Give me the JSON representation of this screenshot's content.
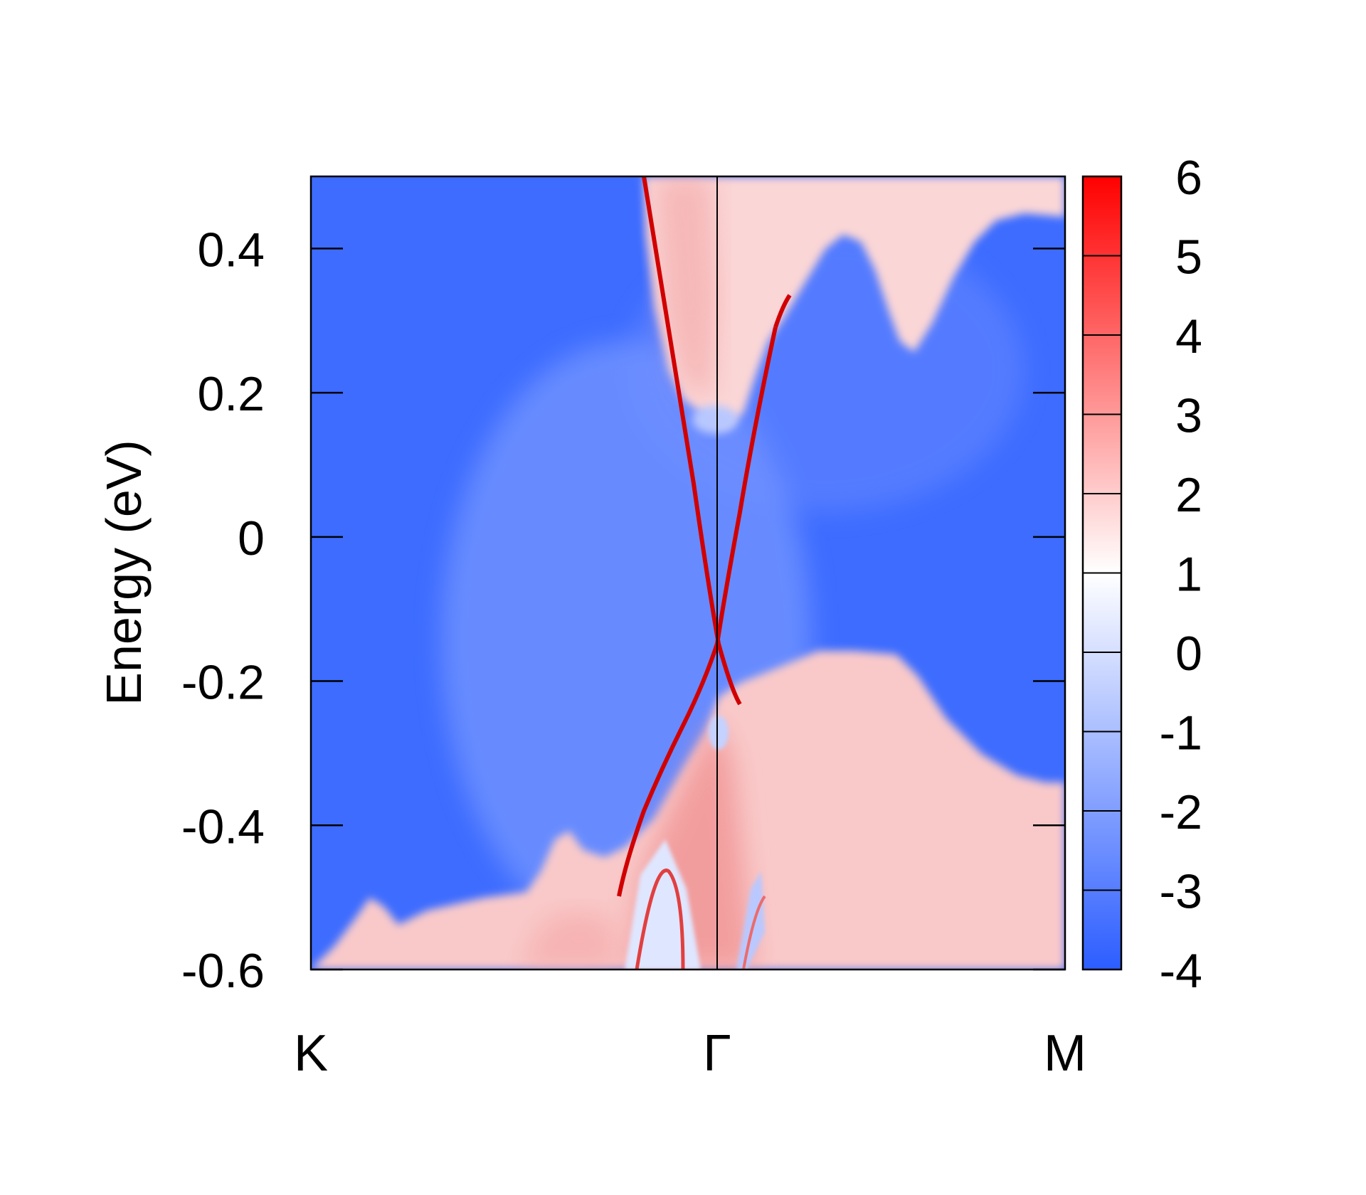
{
  "chart_data": {
    "type": "heatmap",
    "title": "",
    "xlabel": "",
    "ylabel": "Energy (eV)",
    "x_ticks": [
      "K",
      "Γ",
      "M"
    ],
    "y_ticks": [
      "-0.6",
      "-0.4",
      "-0.2",
      "0",
      "0.2",
      "0.4"
    ],
    "y_tick_values": [
      -0.6,
      -0.4,
      -0.2,
      0,
      0.2,
      0.4
    ],
    "ylim": [
      -0.6,
      0.5
    ],
    "x_positions": {
      "K": 0.0,
      "Γ": 0.538,
      "M": 1.0
    },
    "colorbar": {
      "ticks": [
        "6",
        "5",
        "4",
        "3",
        "2",
        "1",
        "0",
        "-1",
        "-2",
        "-3",
        "-4"
      ],
      "range": [
        -4,
        6
      ],
      "colormap": [
        "#2c5dff",
        "#ffffff",
        "#ff0000"
      ]
    },
    "regions": [
      {
        "name": "bulk-gap",
        "value": -3.2,
        "description": "blue background"
      },
      {
        "name": "valence-bulk",
        "value": 2.1,
        "description": "pink region below about -0.2 eV"
      },
      {
        "name": "conduction-bulk",
        "value": 2.2,
        "description": "pink region above about 0.15 eV near Gamma"
      }
    ],
    "surface_states": [
      {
        "name": "dirac-branch-left",
        "dirac_point_energy": -0.15,
        "points": [
          [
            0.445,
            0.5
          ],
          [
            0.538,
            -0.15
          ]
        ]
      },
      {
        "name": "dirac-branch-right",
        "dirac_point_energy": -0.15,
        "points": [
          [
            0.538,
            -0.15
          ],
          [
            0.62,
            0.28
          ]
        ]
      }
    ],
    "colors": {
      "low": "#2c5dff",
      "mid": "#ffffff",
      "high": "#ff0000",
      "axis": "#000000"
    }
  }
}
